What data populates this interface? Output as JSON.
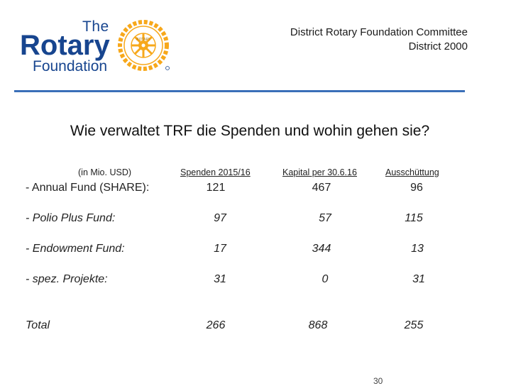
{
  "logo": {
    "line1": "The",
    "line2": "Rotary",
    "line3": "Foundation",
    "emblem": "rotary-wheel-icon",
    "colors": {
      "blue": "#17458f",
      "gold": "#f7a81b"
    }
  },
  "header": {
    "committee_line1": "District Rotary Foundation Committee",
    "committee_line2": "District 2000"
  },
  "title": "Wie verwaltet TRF die Spenden und wohin gehen sie?",
  "table": {
    "unit_label": "(in Mio. USD)",
    "columns": [
      "Spenden 2015/16",
      "Kapital per 30.6.16",
      "Ausschüttung"
    ],
    "rows": [
      {
        "label": "- Annual Fund (SHARE):",
        "values": [
          "121",
          "467",
          "96"
        ]
      },
      {
        "label": "- Polio Plus Fund:",
        "values": [
          "97",
          "57",
          "115"
        ]
      },
      {
        "label": "- Endowment Fund:",
        "values": [
          "17",
          "344",
          "13"
        ]
      },
      {
        "label": "- spez. Projekte:",
        "values": [
          "31",
          "0",
          "31"
        ]
      },
      {
        "label": "Total",
        "values": [
          "266",
          "868",
          "255"
        ]
      }
    ]
  },
  "slide_number": "30"
}
